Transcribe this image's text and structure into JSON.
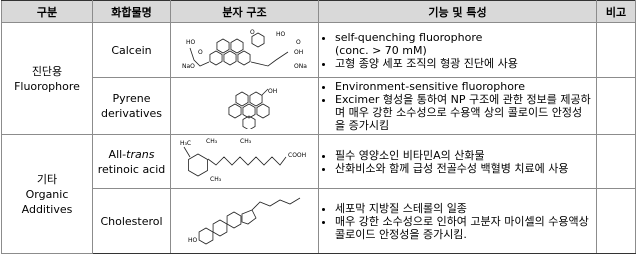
{
  "table": {
    "header": [
      "구분",
      "화합물명",
      "분자 구조",
      "기능 및 특성",
      "비고"
    ],
    "groups": [
      {
        "label": [
          "진단용",
          "Fluorophore"
        ],
        "items": [
          {
            "name": [
              "Calcein"
            ],
            "structure_labels": [
              "HO",
              "O",
              "NaO",
              "ONa",
              "HO",
              "O",
              "OH",
              "O"
            ],
            "features": [
              "self-quenching fluorophore (conc. > 70 mM)",
              "고형 종양 세포 조직의 형광 진단에 사용"
            ]
          },
          {
            "name": [
              "Pyrene derivatives"
            ],
            "structure_labels": [
              "OH"
            ],
            "features": [
              "Environment-sensitive fluorophore",
              "Excimer 형성을 통하여 NP 구조에 관한 정보를 제공하며 매우 강한 소수성으로 수용액 상의 콜로이드 안정성을 증가시킴"
            ]
          }
        ]
      },
      {
        "label": [
          "기타",
          "Organic",
          "Additives"
        ],
        "items": [
          {
            "name": [
              "All-",
              "trans",
              " retinoic acid"
            ],
            "structure_labels": [
              "H₃C",
              "CH₃",
              "CH₃",
              "COOH",
              "CH₃"
            ],
            "features": [
              "필수 영양소인 비타민A의 산화물",
              "산화비소와 함께 급성 전골수성 백혈병 치료에 사용"
            ]
          },
          {
            "name": [
              "Cholesterol"
            ],
            "structure_labels": [
              "HO"
            ],
            "features": [
              "세포막 지방질 스테롤의 일종",
              "매우 강한 소수성으로 인하여 고분자 마이셀의 수용액상 콜로이드 안정성을 증가시킴."
            ]
          }
        ]
      }
    ]
  }
}
